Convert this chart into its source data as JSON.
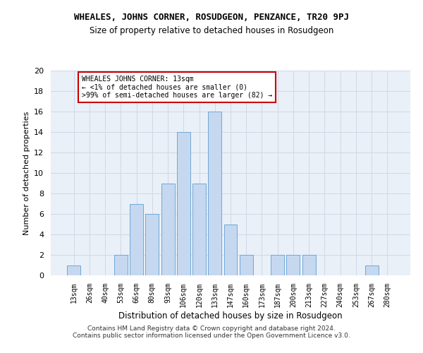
{
  "title": "WHEALES, JOHNS CORNER, ROSUDGEON, PENZANCE, TR20 9PJ",
  "subtitle": "Size of property relative to detached houses in Rosudgeon",
  "xlabel": "Distribution of detached houses by size in Rosudgeon",
  "ylabel": "Number of detached properties",
  "categories": [
    "13sqm",
    "26sqm",
    "40sqm",
    "53sqm",
    "66sqm",
    "80sqm",
    "93sqm",
    "106sqm",
    "120sqm",
    "133sqm",
    "147sqm",
    "160sqm",
    "173sqm",
    "187sqm",
    "200sqm",
    "213sqm",
    "227sqm",
    "240sqm",
    "253sqm",
    "267sqm",
    "280sqm"
  ],
  "values": [
    1,
    0,
    0,
    2,
    7,
    6,
    9,
    14,
    9,
    16,
    5,
    2,
    0,
    2,
    2,
    2,
    0,
    0,
    0,
    1,
    0
  ],
  "bar_color": "#c5d8f0",
  "bar_edge_color": "#6fa8d5",
  "annotation_text": "WHEALES JOHNS CORNER: 13sqm\n← <1% of detached houses are smaller (0)\n>99% of semi-detached houses are larger (82) →",
  "annotation_box_color": "#ffffff",
  "annotation_box_edge_color": "#cc0000",
  "ylim": [
    0,
    20
  ],
  "yticks": [
    0,
    2,
    4,
    6,
    8,
    10,
    12,
    14,
    16,
    18,
    20
  ],
  "grid_color": "#d0d8e8",
  "background_color": "#eaf0f8",
  "footer_line1": "Contains HM Land Registry data © Crown copyright and database right 2024.",
  "footer_line2": "Contains public sector information licensed under the Open Government Licence v3.0."
}
